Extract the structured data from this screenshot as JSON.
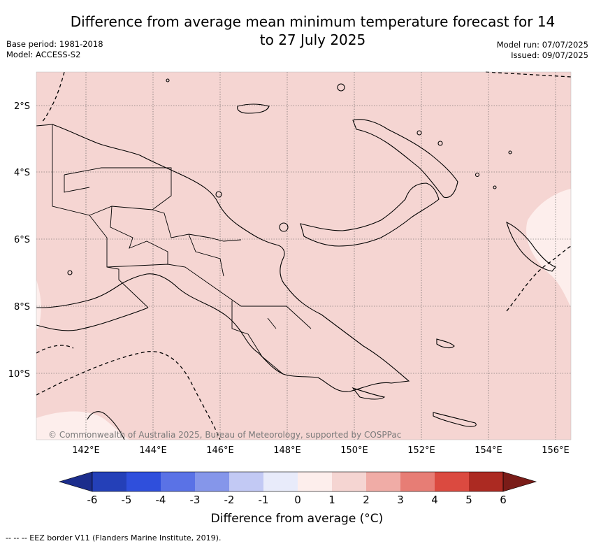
{
  "title": "Difference from average mean minimum temperature forecast for 14 to 27 July 2025",
  "meta_left": [
    "Base period: 1981-2018",
    "Model: ACCESS-S2"
  ],
  "meta_right": [
    "Model run: 07/07/2025",
    "Issued: 09/07/2025"
  ],
  "map": {
    "lat_labels": [
      "2°S",
      "4°S",
      "6°S",
      "8°S",
      "10°S"
    ],
    "lon_labels": [
      "142°E",
      "144°E",
      "146°E",
      "148°E",
      "150°E",
      "152°E",
      "154°E",
      "156°E"
    ],
    "background_color": "#f5d5d2",
    "light_region_color": "#fdeeec",
    "copyright": "© Commonwealth of Australia 2025, Bureau of Meteorology, supported by COSPPac"
  },
  "colorbar": {
    "labels": [
      "-6",
      "-5",
      "-4",
      "-3",
      "-2",
      "-1",
      "0",
      "1",
      "2",
      "3",
      "4",
      "5",
      "6"
    ],
    "colors": [
      "#1c2d8c",
      "#2440b8",
      "#2f4fdc",
      "#5a72e6",
      "#8596ea",
      "#c2c9f4",
      "#e8ebfa",
      "#fdeeec",
      "#f5d5d2",
      "#f0aca6",
      "#e77d75",
      "#db4a40",
      "#ac2a22",
      "#7a1c18"
    ],
    "title": "Difference from average (°C)"
  },
  "footnote": "--  --  -- EEZ border V11 (Flanders Marine Institute, 2019)."
}
